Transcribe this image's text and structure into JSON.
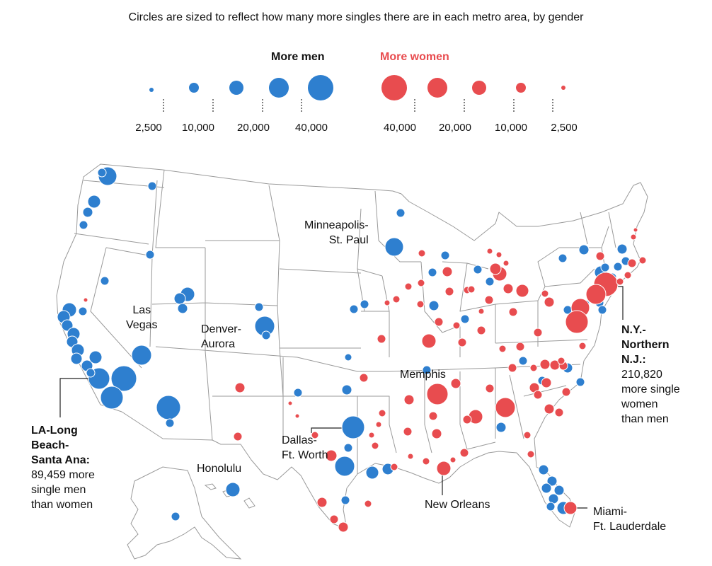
{
  "title": "Circles are sized to reflect how many more singles there are in each metro area, by gender",
  "legend": {
    "men_label": "More men",
    "women_label": "More women",
    "men_values": [
      "2,500",
      "10,000",
      "20,000",
      "40,000"
    ],
    "women_values": [
      "40,000",
      "20,000",
      "10,000",
      "2,500"
    ],
    "men_color": "#2e7fcf",
    "women_color": "#e84c4f"
  },
  "annotations": {
    "minneapolis": "Minneapolis-\nSt. Paul",
    "las_vegas": "Las\nVegas",
    "denver": "Denver-\nAurora",
    "memphis": "Memphis",
    "dallas": "Dallas-\nFt. Worth",
    "honolulu": "Honolulu",
    "new_orleans": "New Orleans",
    "miami": "Miami-\nFt. Lauderdale",
    "ny_title": "N.Y.-\nNorthern\nN.J.:",
    "ny_body": "210,820\nmore single\nwomen\nthan men",
    "la_title": "LA-Long\nBeach-\nSanta Ana:",
    "la_body": "89,459 more\nsingle men\nthan women"
  }
}
